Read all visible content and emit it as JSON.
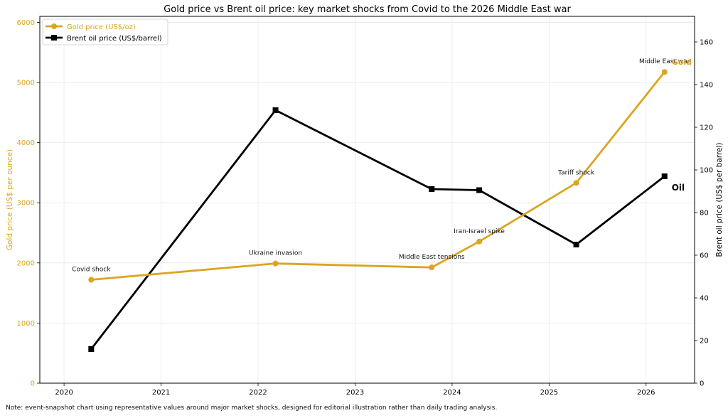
{
  "chart_data": {
    "type": "line",
    "title": "Gold price vs Brent oil price: key market shocks from Covid to the 2026 Middle East war",
    "x": [
      2020.28,
      2022.18,
      2023.79,
      2024.28,
      2025.28,
      2026.19
    ],
    "x_ticks": [
      "2020",
      "2021",
      "2022",
      "2023",
      "2024",
      "2025",
      "2026"
    ],
    "xlim": [
      2019.75,
      2026.5
    ],
    "ylabel_left": "Gold price (US$ per ounce)",
    "ylabel_right": "Brent oil price (US$ per barrel)",
    "ylim_left": [
      0,
      6100
    ],
    "ylim_right": [
      0,
      172
    ],
    "yticks_left": [
      0,
      1000,
      2000,
      3000,
      4000,
      5000,
      6000
    ],
    "yticks_right": [
      0,
      20,
      40,
      60,
      80,
      100,
      120,
      140,
      160
    ],
    "grid": true,
    "legend_position": "top-left",
    "series": [
      {
        "name": "Gold price (US$/oz)",
        "axis": "left",
        "color": "#DAA520",
        "marker": "circle",
        "values": [
          1720,
          1990,
          1925,
          2355,
          3330,
          5175
        ],
        "end_label": "Gold"
      },
      {
        "name": "Brent oil price (US$/barrel)",
        "axis": "right",
        "color": "#000000",
        "marker": "square",
        "values": [
          16,
          128,
          91,
          90.5,
          65,
          97
        ],
        "end_label": "Oil"
      }
    ],
    "annotations": [
      "Covid shock",
      "Ukraine invasion",
      "Middle East tensions",
      "Iran-Israel spike",
      "Tariff shock",
      "Middle East war"
    ]
  },
  "footnote": "Note: event-snapshot chart using representative values around major market shocks, designed for editorial illustration rather than daily trading analysis."
}
